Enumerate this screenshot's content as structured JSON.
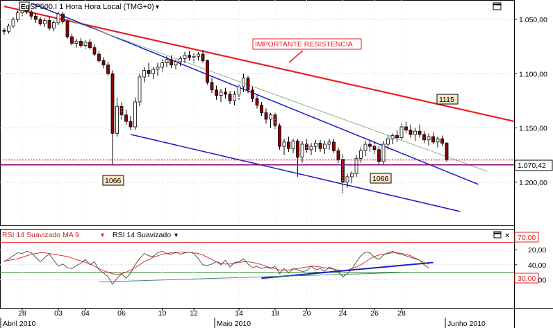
{
  "main_panel": {
    "symbol_badge": "Eq",
    "title": "SP500.I 1 Hora Hora Local (TMG+0)",
    "dropdown_glyph": "▾",
    "y_ticks": [
      "1.200,00",
      "1.150,00",
      "1.100,00",
      "1.050,00"
    ],
    "price_label": "1.070,42",
    "annotation_resistance": "IMPORTANTE RESISTENCIA",
    "annotation_1115": "1115",
    "annotation_1066_left": "1066",
    "annotation_1066_right": "1066"
  },
  "rsi_panel": {
    "series1_label": "RSI 14 Suavizado MA 9",
    "series2_label": "RSI 14 Suavizado",
    "dropdown_glyph": "▾",
    "close_glyph": "✕",
    "y_ticks": [
      "60,00",
      "40,00",
      "20,00"
    ],
    "level_high": "70,00",
    "level_low": "30,00"
  },
  "x_axis": {
    "day_ticks": [
      "28",
      "03",
      "04",
      "06",
      "10",
      "12",
      "14",
      "18",
      "20",
      "24",
      "26",
      "28"
    ],
    "month_labels": [
      "Abril 2010",
      "Maio 2010",
      "Junho 2010"
    ]
  },
  "colors": {
    "candle_up": "#ffffff",
    "candle_down": "#8b0000",
    "wick": "#000000",
    "resistance_line": "#e82020",
    "channel_line": "#1a1acc",
    "ma_line": "#8fb08f",
    "rsi_line": "#555555",
    "rsi_ma_line": "#e03030",
    "level_purple": "#800080",
    "level_green": "#2e8b2e"
  },
  "chart_data": [
    {
      "type": "candlestick",
      "title": "SP500.I 1 Hora Hora Local (TMG+0)",
      "ylim": [
        1025,
        1220
      ],
      "y_ticks": [
        1050,
        1100,
        1150,
        1200
      ],
      "last_price": 1070.42,
      "support_level": 1066,
      "annotations": [
        "IMPORTANTE RESISTENCIA",
        "1115",
        "1066",
        "1066"
      ],
      "trendlines": [
        {
          "name": "resistance",
          "from": [
            0,
            1212
          ],
          "to": [
            113,
            1106
          ]
        },
        {
          "name": "channel_upper",
          "from": [
            6,
            1215
          ],
          "to": [
            105,
            1048
          ]
        },
        {
          "name": "channel_lower",
          "from": [
            28,
            1094
          ],
          "to": [
            101,
            1023
          ]
        },
        {
          "name": "mid_line",
          "from": [
            14,
            1200
          ],
          "to": [
            107,
            1060
          ]
        }
      ],
      "ohlc": [
        [
          1190,
          1192,
          1186,
          1189
        ],
        [
          1189,
          1196,
          1187,
          1194
        ],
        [
          1194,
          1202,
          1192,
          1200
        ],
        [
          1200,
          1208,
          1198,
          1206
        ],
        [
          1206,
          1211,
          1203,
          1209
        ],
        [
          1209,
          1212,
          1205,
          1207
        ],
        [
          1207,
          1209,
          1200,
          1203
        ],
        [
          1203,
          1206,
          1197,
          1200
        ],
        [
          1200,
          1202,
          1194,
          1196
        ],
        [
          1196,
          1201,
          1193,
          1199
        ],
        [
          1199,
          1203,
          1190,
          1192
        ],
        [
          1192,
          1199,
          1189,
          1197
        ],
        [
          1197,
          1207,
          1195,
          1205
        ],
        [
          1205,
          1207,
          1196,
          1198
        ],
        [
          1198,
          1200,
          1182,
          1184
        ],
        [
          1184,
          1187,
          1176,
          1178
        ],
        [
          1178,
          1182,
          1174,
          1180
        ],
        [
          1180,
          1183,
          1174,
          1176
        ],
        [
          1176,
          1181,
          1173,
          1179
        ],
        [
          1179,
          1182,
          1172,
          1174
        ],
        [
          1174,
          1177,
          1166,
          1168
        ],
        [
          1168,
          1171,
          1160,
          1162
        ],
        [
          1162,
          1165,
          1155,
          1158
        ],
        [
          1158,
          1161,
          1148,
          1150
        ],
        [
          1150,
          1153,
          1066,
          1095
        ],
        [
          1095,
          1128,
          1092,
          1120
        ],
        [
          1120,
          1124,
          1108,
          1112
        ],
        [
          1112,
          1117,
          1103,
          1106
        ],
        [
          1106,
          1111,
          1098,
          1101
        ],
        [
          1101,
          1128,
          1098,
          1124
        ],
        [
          1124,
          1150,
          1120,
          1147
        ],
        [
          1147,
          1156,
          1142,
          1153
        ],
        [
          1153,
          1160,
          1147,
          1150
        ],
        [
          1150,
          1156,
          1145,
          1154
        ],
        [
          1154,
          1160,
          1148,
          1156
        ],
        [
          1156,
          1163,
          1152,
          1160
        ],
        [
          1160,
          1166,
          1156,
          1163
        ],
        [
          1163,
          1167,
          1155,
          1158
        ],
        [
          1158,
          1163,
          1154,
          1161
        ],
        [
          1161,
          1166,
          1157,
          1164
        ],
        [
          1164,
          1170,
          1160,
          1167
        ],
        [
          1167,
          1171,
          1162,
          1165
        ],
        [
          1165,
          1169,
          1160,
          1166
        ],
        [
          1166,
          1170,
          1162,
          1168
        ],
        [
          1168,
          1172,
          1160,
          1162
        ],
        [
          1162,
          1163,
          1140,
          1142
        ],
        [
          1142,
          1146,
          1132,
          1135
        ],
        [
          1135,
          1139,
          1126,
          1130
        ],
        [
          1130,
          1136,
          1124,
          1133
        ],
        [
          1133,
          1137,
          1127,
          1131
        ],
        [
          1131,
          1134,
          1122,
          1125
        ],
        [
          1125,
          1134,
          1121,
          1131
        ],
        [
          1131,
          1140,
          1126,
          1138
        ],
        [
          1138,
          1150,
          1133,
          1146
        ],
        [
          1146,
          1148,
          1132,
          1135
        ],
        [
          1135,
          1138,
          1124,
          1127
        ],
        [
          1127,
          1130,
          1118,
          1121
        ],
        [
          1121,
          1124,
          1111,
          1114
        ],
        [
          1114,
          1118,
          1104,
          1108
        ],
        [
          1108,
          1114,
          1100,
          1112
        ],
        [
          1112,
          1114,
          1099,
          1102
        ],
        [
          1102,
          1104,
          1080,
          1083
        ],
        [
          1083,
          1090,
          1075,
          1087
        ],
        [
          1087,
          1092,
          1078,
          1081
        ],
        [
          1081,
          1090,
          1077,
          1088
        ],
        [
          1088,
          1090,
          1055,
          1073
        ],
        [
          1073,
          1088,
          1068,
          1085
        ],
        [
          1085,
          1090,
          1077,
          1080
        ],
        [
          1080,
          1086,
          1075,
          1083
        ],
        [
          1083,
          1089,
          1078,
          1086
        ],
        [
          1086,
          1089,
          1078,
          1081
        ],
        [
          1081,
          1088,
          1076,
          1085
        ],
        [
          1085,
          1090,
          1080,
          1087
        ],
        [
          1087,
          1090,
          1077,
          1079
        ],
        [
          1079,
          1082,
          1068,
          1071
        ],
        [
          1071,
          1076,
          1040,
          1050
        ],
        [
          1050,
          1058,
          1045,
          1055
        ],
        [
          1055,
          1060,
          1049,
          1058
        ],
        [
          1058,
          1075,
          1055,
          1072
        ],
        [
          1072,
          1082,
          1068,
          1079
        ],
        [
          1079,
          1088,
          1074,
          1085
        ],
        [
          1085,
          1089,
          1078,
          1083
        ],
        [
          1083,
          1088,
          1076,
          1080
        ],
        [
          1080,
          1083,
          1066,
          1069
        ],
        [
          1069,
          1088,
          1066,
          1085
        ],
        [
          1085,
          1093,
          1080,
          1090
        ],
        [
          1090,
          1095,
          1085,
          1093
        ],
        [
          1093,
          1098,
          1087,
          1091
        ],
        [
          1091,
          1104,
          1089,
          1101
        ],
        [
          1101,
          1106,
          1095,
          1098
        ],
        [
          1098,
          1103,
          1091,
          1094
        ],
        [
          1094,
          1100,
          1088,
          1097
        ],
        [
          1097,
          1103,
          1091,
          1094
        ],
        [
          1094,
          1097,
          1086,
          1089
        ],
        [
          1089,
          1095,
          1084,
          1092
        ],
        [
          1092,
          1096,
          1085,
          1087
        ],
        [
          1087,
          1092,
          1082,
          1090
        ],
        [
          1090,
          1093,
          1083,
          1086
        ],
        [
          1086,
          1087,
          1069,
          1071
        ]
      ]
    },
    {
      "type": "line",
      "title": "RSI 14 Suavizado",
      "ylim": [
        10,
        75
      ],
      "y_ticks": [
        20,
        40,
        60
      ],
      "levels": [
        70,
        30
      ],
      "series": [
        {
          "name": "RSI 14 Suavizado MA 9",
          "values": [
            45,
            46,
            47,
            48,
            50,
            52,
            54,
            55,
            56,
            56,
            55,
            54,
            53,
            52,
            51,
            49,
            47,
            45,
            43,
            41,
            38,
            35,
            32,
            30,
            28,
            27,
            28,
            30,
            33,
            36,
            40,
            44,
            47,
            50,
            52,
            54,
            55,
            56,
            56,
            57,
            57,
            57,
            56,
            55,
            53,
            50,
            47,
            44,
            42,
            41,
            41,
            42,
            43,
            44,
            44,
            43,
            42,
            40,
            38,
            36,
            35,
            33,
            33,
            33,
            34,
            35,
            36,
            37,
            38,
            38,
            37,
            36,
            35,
            34,
            33,
            32,
            33,
            35,
            37,
            40,
            44,
            48,
            51,
            53,
            54,
            55,
            56,
            56,
            55,
            54,
            52,
            49,
            46,
            43,
            41
          ]
        },
        {
          "name": "RSI 14 Suavizado",
          "values": [
            44,
            48,
            52,
            56,
            55,
            58,
            56,
            50,
            44,
            50,
            54,
            46,
            38,
            41,
            36,
            35,
            39,
            42,
            47,
            40,
            44,
            33,
            29,
            24,
            14,
            22,
            28,
            22,
            29,
            40,
            48,
            55,
            52,
            51,
            56,
            58,
            55,
            54,
            57,
            54,
            56,
            57,
            55,
            48,
            40,
            39,
            41,
            44,
            40,
            46,
            37,
            43,
            44,
            48,
            41,
            36,
            38,
            35,
            37,
            35,
            38,
            28,
            35,
            29,
            35,
            33,
            31,
            32,
            38,
            33,
            35,
            31,
            37,
            34,
            30,
            24,
            28,
            34,
            44,
            52,
            57,
            56,
            50,
            47,
            53,
            56,
            58,
            55,
            54,
            52,
            50,
            48,
            46,
            40,
            36
          ]
        }
      ],
      "trendlines": [
        {
          "name": "support_blue",
          "from": [
            57,
            22
          ],
          "to": [
            95,
            43
          ]
        },
        {
          "name": "support_green",
          "from": [
            21,
            17
          ],
          "to": [
            90,
            30
          ]
        }
      ]
    }
  ]
}
